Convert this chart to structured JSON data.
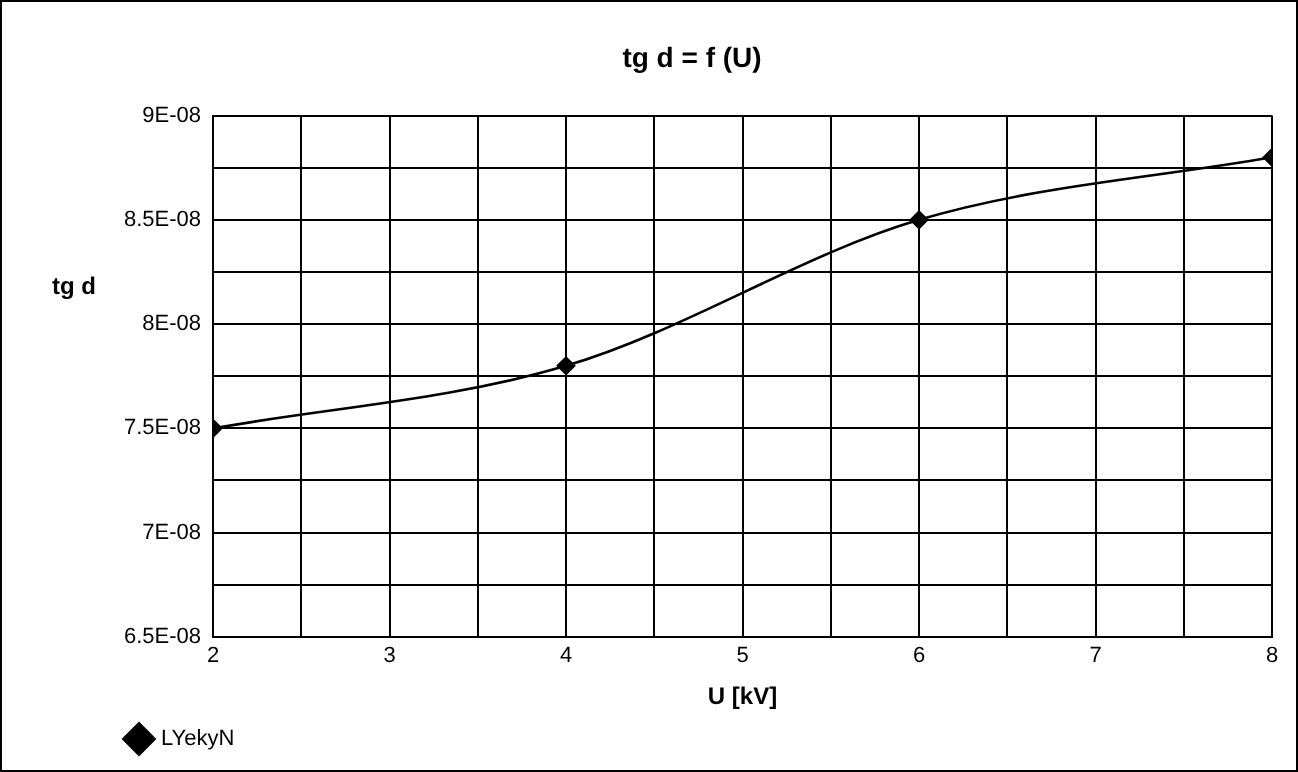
{
  "chart_data": {
    "type": "line",
    "title": "tg d = f (U)",
    "xlabel": "U [kV]",
    "ylabel": "tg d",
    "x": [
      2,
      4,
      6,
      8
    ],
    "series": [
      {
        "name": "LYekyN",
        "color": "#000000",
        "values": [
          7.5e-08,
          7.8e-08,
          8.5e-08,
          8.8e-08
        ]
      }
    ],
    "xlim": [
      2,
      8
    ],
    "xticks": [
      2,
      {
        "value": 2.5,
        "label": null
      },
      3,
      {
        "value": 3.5,
        "label": null
      },
      4,
      {
        "value": 4.5,
        "label": null
      },
      5,
      {
        "value": 5.5,
        "label": null
      },
      6,
      {
        "value": 6.5,
        "label": null
      },
      7,
      {
        "value": 7.5,
        "label": null
      },
      8
    ],
    "ylim": [
      6.5e-08,
      9e-08
    ],
    "yticks": [
      {
        "value": 6.5e-08,
        "label": "6.5E-08"
      },
      {
        "value": 6.75e-08,
        "label": null
      },
      {
        "value": 7e-08,
        "label": "7E-08"
      },
      {
        "value": 7.25e-08,
        "label": null
      },
      {
        "value": 7.5e-08,
        "label": "7.5E-08"
      },
      {
        "value": 7.75e-08,
        "label": null
      },
      {
        "value": 8e-08,
        "label": "8E-08"
      },
      {
        "value": 8.25e-08,
        "label": null
      },
      {
        "value": 8.5e-08,
        "label": "8.5E-08"
      },
      {
        "value": 8.75e-08,
        "label": null
      },
      {
        "value": 9e-08,
        "label": "9E-08"
      }
    ],
    "grid": true,
    "legend": "bottom left",
    "marker": "diamond",
    "line_style": "solid"
  }
}
